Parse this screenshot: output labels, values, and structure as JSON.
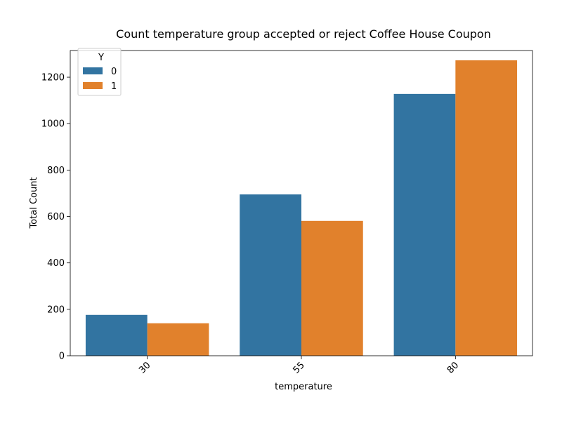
{
  "chart_data": {
    "type": "bar",
    "title": "Count temperature group accepted or reject Coffee House Coupon",
    "xlabel": "temperature",
    "ylabel": "Total Count",
    "categories": [
      "30",
      "55",
      "80"
    ],
    "series": [
      {
        "name": "0",
        "values": [
          176,
          695,
          1128
        ],
        "color": "#3274a1"
      },
      {
        "name": "1",
        "values": [
          140,
          581,
          1273
        ],
        "color": "#e1812c"
      }
    ],
    "ylim": [
      0,
      1315
    ],
    "yticks": [
      "0",
      "200",
      "400",
      "600",
      "800",
      "1000",
      "1200"
    ],
    "grid": false,
    "legend": {
      "title": "Y",
      "placement": "top-left"
    }
  }
}
